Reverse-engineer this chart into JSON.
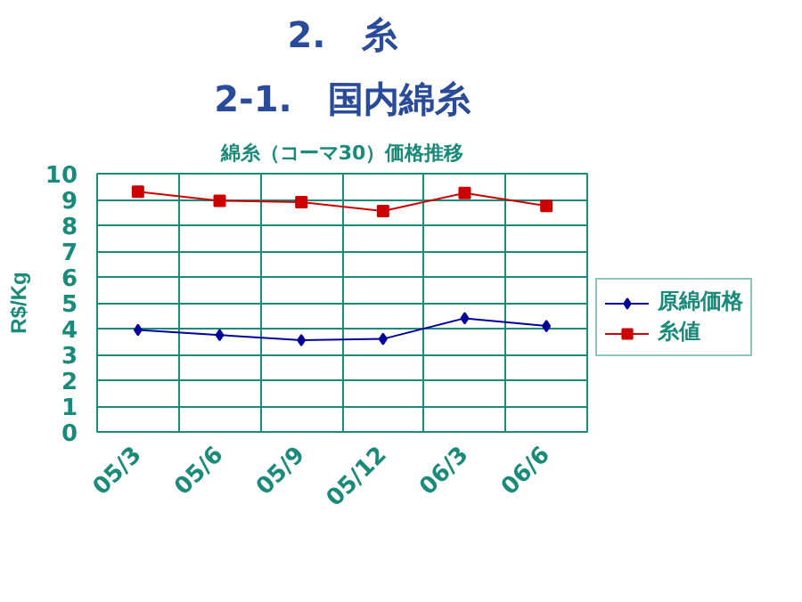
{
  "chart_data": {
    "type": "line",
    "title": "2.　糸",
    "subtitle": "2-1.　国内綿糸",
    "annotations": [
      "綿糸（コーマ30）価格推移"
    ],
    "ylabel": "R$/Kg",
    "categories": [
      "05/3",
      "05/6",
      "05/9",
      "05/12",
      "06/3",
      "06/6"
    ],
    "series": [
      {
        "name": "原綿価格",
        "color": "#000099",
        "marker": "diamond",
        "values": [
          3.95,
          3.75,
          3.55,
          3.6,
          4.4,
          4.1
        ]
      },
      {
        "name": "糸値",
        "color": "#cc0000",
        "marker": "square",
        "values": [
          9.3,
          8.95,
          8.9,
          8.55,
          9.25,
          8.75
        ]
      }
    ],
    "ylim": [
      0,
      10
    ],
    "yticks": [
      0,
      1,
      2,
      3,
      4,
      5,
      6,
      7,
      8,
      9,
      10
    ],
    "grid": true,
    "legend": "right",
    "line_style": "solid"
  }
}
